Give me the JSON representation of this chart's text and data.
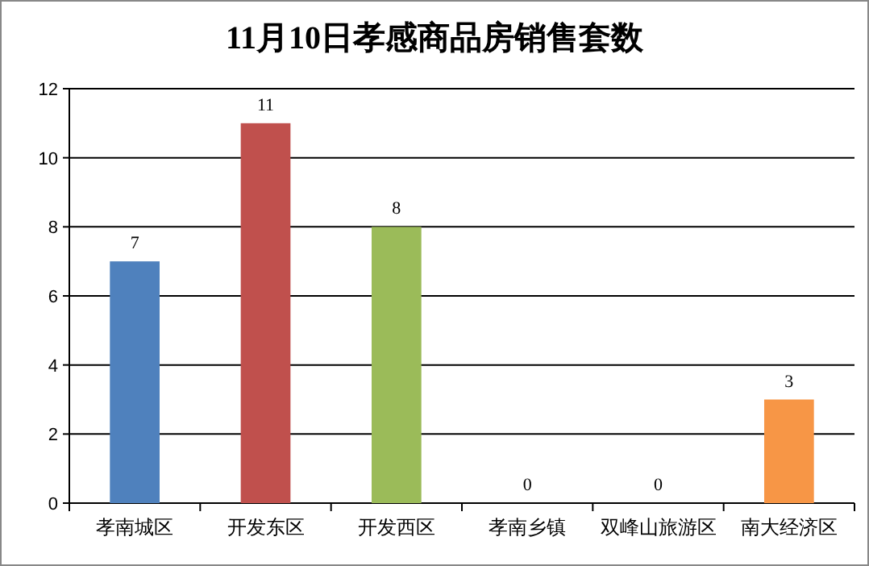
{
  "chart_data": {
    "type": "bar",
    "title": "11月10日孝感商品房销售套数",
    "categories": [
      "孝南城区",
      "开发东区",
      "开发西区",
      "孝南乡镇",
      "双峰山旅游区",
      "南大经济区"
    ],
    "values": [
      7,
      11,
      8,
      0,
      0,
      3
    ],
    "colors": [
      "#4f81bd",
      "#c0504d",
      "#9bbb59",
      "#8064a2",
      "#4bacc6",
      "#f79646"
    ],
    "ylim": [
      0,
      12
    ],
    "yticks": [
      0,
      2,
      4,
      6,
      8,
      10,
      12
    ],
    "grid": "y",
    "data_labels": true
  }
}
